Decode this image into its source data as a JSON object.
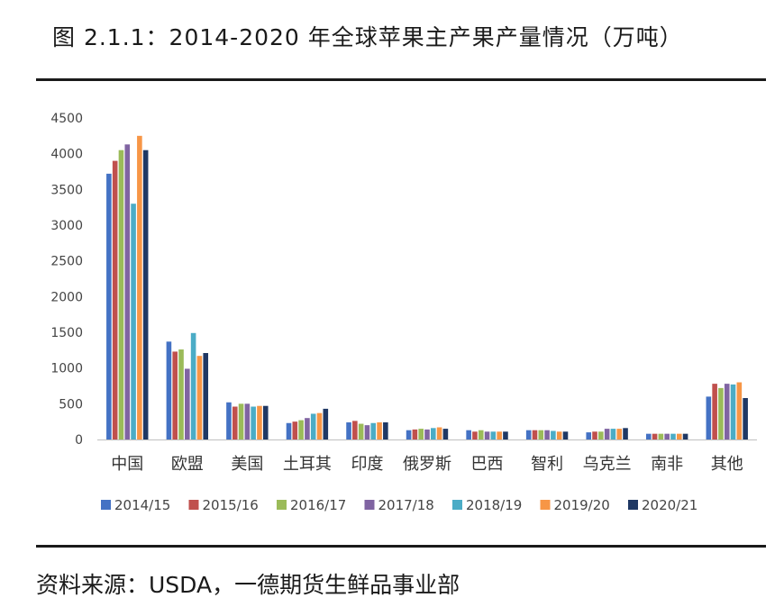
{
  "title": "图 2.1.1：2014-2020 年全球苹果主产果产量情况（万吨）",
  "source": "资料来源：USDA，一德期货生鲜品事业部",
  "chart_data": {
    "type": "bar",
    "title": "图 2.1.1：2014-2020 年全球苹果主产果产量情况（万吨）",
    "xlabel": "",
    "ylabel": "",
    "ylim": [
      0,
      4500
    ],
    "yticks": [
      0,
      500,
      1000,
      1500,
      2000,
      2500,
      3000,
      3500,
      4000,
      4500
    ],
    "grid": false,
    "legend_position": "bottom",
    "categories": [
      "中国",
      "欧盟",
      "美国",
      "土耳其",
      "印度",
      "俄罗斯",
      "巴西",
      "智利",
      "乌克兰",
      "南非",
      "其他"
    ],
    "series": [
      {
        "name": "2014/15",
        "color": "#4472C4",
        "values": [
          3720,
          1370,
          520,
          230,
          240,
          130,
          130,
          130,
          100,
          80,
          600
        ]
      },
      {
        "name": "2015/16",
        "color": "#C0504D",
        "values": [
          3900,
          1230,
          460,
          250,
          260,
          140,
          110,
          130,
          110,
          80,
          780
        ]
      },
      {
        "name": "2016/17",
        "color": "#9BBB59",
        "values": [
          4050,
          1260,
          500,
          270,
          220,
          150,
          130,
          130,
          110,
          80,
          720
        ]
      },
      {
        "name": "2017/18",
        "color": "#8064A2",
        "values": [
          4130,
          990,
          500,
          300,
          200,
          140,
          110,
          130,
          150,
          80,
          780
        ]
      },
      {
        "name": "2018/19",
        "color": "#4BACC6",
        "values": [
          3300,
          1490,
          460,
          360,
          230,
          160,
          110,
          120,
          150,
          80,
          770
        ]
      },
      {
        "name": "2019/20",
        "color": "#F79646",
        "values": [
          4250,
          1170,
          470,
          370,
          240,
          170,
          110,
          110,
          150,
          80,
          800
        ]
      },
      {
        "name": "2020/21",
        "color": "#1F3864",
        "values": [
          4050,
          1210,
          470,
          430,
          240,
          150,
          110,
          110,
          160,
          80,
          580
        ]
      }
    ]
  }
}
